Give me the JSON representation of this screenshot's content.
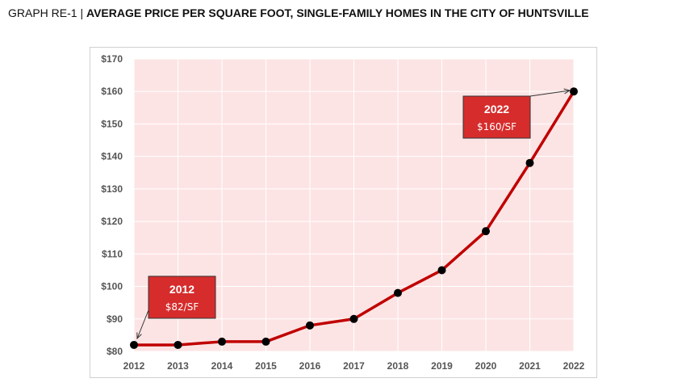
{
  "title": {
    "prefix": "GRAPH RE-1 | ",
    "main": "AVERAGE PRICE PER SQUARE FOOT, SINGLE-FAMILY HOMES IN THE CITY OF HUNTSVILLE"
  },
  "colors": {
    "plot_bg": "#fde4e4",
    "line": "#c00000",
    "marker": "#000000",
    "callout_bg": "#d62c2c",
    "grid": "#ffffff"
  },
  "chart_data": {
    "type": "line",
    "x": [
      2012,
      2013,
      2014,
      2015,
      2016,
      2017,
      2018,
      2019,
      2020,
      2021,
      2022
    ],
    "series": [
      {
        "values": [
          82,
          82,
          83,
          83,
          88,
          90,
          98,
          105,
          117,
          138,
          160
        ]
      }
    ],
    "ylim": [
      80,
      170
    ],
    "yticks": [
      "$80",
      "$90",
      "$100",
      "$110",
      "$120",
      "$130",
      "$140",
      "$150",
      "$160",
      "$170"
    ],
    "xticks": [
      "2012",
      "2013",
      "2014",
      "2015",
      "2016",
      "2017",
      "2018",
      "2019",
      "2020",
      "2021",
      "2022"
    ],
    "grid": true,
    "annotations": [
      {
        "year": "2012",
        "value": "$82/SF",
        "x": 2012,
        "y": 82
      },
      {
        "year": "2022",
        "value": "$160/SF",
        "x": 2022,
        "y": 160
      }
    ]
  }
}
